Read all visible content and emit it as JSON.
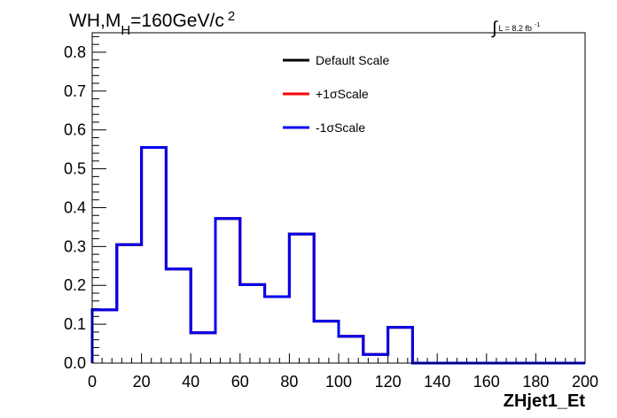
{
  "chart_data": {
    "type": "line",
    "title": {
      "prefix": "WH,M",
      "subscript": "H",
      "middle": "=160GeV/c",
      "superscript": "2"
    },
    "luminosity": {
      "symbol": "∫",
      "text": "L = 8.2 fb",
      "exponent": "-1"
    },
    "xlabel": "ZHjet1_Et",
    "ylabel": "",
    "xlim": [
      0,
      200
    ],
    "ylim": [
      0,
      0.85
    ],
    "x_ticks": [
      "0",
      "20",
      "40",
      "60",
      "80",
      "100",
      "120",
      "140",
      "160",
      "180",
      "200"
    ],
    "y_ticks": [
      "0.0",
      "0.1",
      "0.2",
      "0.3",
      "0.4",
      "0.5",
      "0.6",
      "0.7",
      "0.8"
    ],
    "bin_edges": [
      0,
      10,
      20,
      30,
      40,
      50,
      60,
      70,
      80,
      90,
      100,
      110,
      120,
      130,
      140,
      150,
      160,
      170,
      180,
      190,
      200
    ],
    "series": [
      {
        "name": "Default Scale",
        "color": "#000000",
        "values": [
          0.137,
          0.305,
          0.555,
          0.242,
          0.078,
          0.372,
          0.202,
          0.171,
          0.332,
          0.108,
          0.069,
          0.022,
          0.092,
          0,
          0,
          0,
          0,
          0,
          0,
          0
        ]
      },
      {
        "name": "+1σScale",
        "color": "#ff0000",
        "values": [
          0.137,
          0.305,
          0.555,
          0.242,
          0.078,
          0.372,
          0.202,
          0.171,
          0.332,
          0.108,
          0.069,
          0.022,
          0.092,
          0,
          0,
          0,
          0,
          0,
          0,
          0
        ]
      },
      {
        "name": "-1σScale",
        "color": "#0000ee",
        "values": [
          0.137,
          0.305,
          0.555,
          0.242,
          0.078,
          0.372,
          0.202,
          0.171,
          0.332,
          0.108,
          0.069,
          0.022,
          0.092,
          0,
          0,
          0,
          0,
          0,
          0,
          0
        ]
      }
    ],
    "legend_position": "top-center",
    "grid": false
  }
}
